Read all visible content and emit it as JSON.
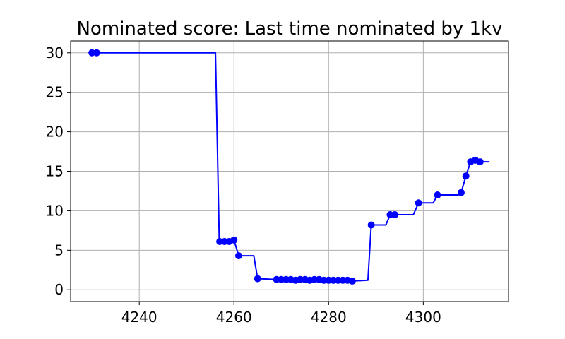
{
  "chart_data": {
    "type": "line",
    "title": "Nominated score: Last time nominated by 1kv",
    "xlabel": "",
    "ylabel": "",
    "xlim": [
      4225.5,
      4318
    ],
    "ylim": [
      -1.5,
      31.5
    ],
    "xticks": [
      4240,
      4260,
      4280,
      4300
    ],
    "yticks": [
      0,
      5,
      10,
      15,
      20,
      25,
      30
    ],
    "grid": true,
    "legend": "none",
    "line_color": "#0000ff",
    "marker_color": "#0000ff",
    "line_x": [
      4230,
      4231,
      4256.1,
      4256.9,
      4258,
      4259,
      4260,
      4261,
      4264.2,
      4265,
      4269,
      4270,
      4271,
      4272,
      4273,
      4274,
      4275,
      4276,
      4277,
      4278,
      4279,
      4280,
      4281,
      4282,
      4283,
      4284,
      4285,
      4288.3,
      4289,
      4292.1,
      4293,
      4294,
      4297.9,
      4299,
      4302.1,
      4303,
      4307.4,
      4308,
      4309,
      4310,
      4311,
      4312,
      4314
    ],
    "line_y": [
      30,
      30,
      30,
      6.1,
      6.1,
      6.1,
      6.3,
      4.3,
      4.3,
      1.4,
      1.3,
      1.3,
      1.3,
      1.3,
      1.2,
      1.3,
      1.3,
      1.2,
      1.3,
      1.3,
      1.2,
      1.2,
      1.2,
      1.2,
      1.2,
      1.2,
      1.1,
      1.2,
      8.2,
      8.2,
      9.5,
      9.5,
      9.5,
      11,
      11,
      12,
      12,
      12.3,
      14.4,
      16.2,
      16.4,
      16.2,
      16.2
    ],
    "points_x": [
      4230,
      4231,
      4257,
      4258,
      4259,
      4260,
      4261,
      4265,
      4269,
      4270,
      4271,
      4272,
      4273,
      4274,
      4275,
      4276,
      4277,
      4278,
      4279,
      4280,
      4281,
      4282,
      4283,
      4284,
      4285,
      4289,
      4293,
      4294,
      4299,
      4303,
      4308,
      4309,
      4310,
      4311,
      4312
    ],
    "points_y": [
      30,
      30,
      6.1,
      6.1,
      6.1,
      6.3,
      4.3,
      1.4,
      1.3,
      1.3,
      1.3,
      1.3,
      1.2,
      1.3,
      1.3,
      1.2,
      1.3,
      1.3,
      1.2,
      1.2,
      1.2,
      1.2,
      1.2,
      1.2,
      1.1,
      8.2,
      9.5,
      9.5,
      11,
      12,
      12.3,
      14.4,
      16.2,
      16.4,
      16.2
    ]
  }
}
